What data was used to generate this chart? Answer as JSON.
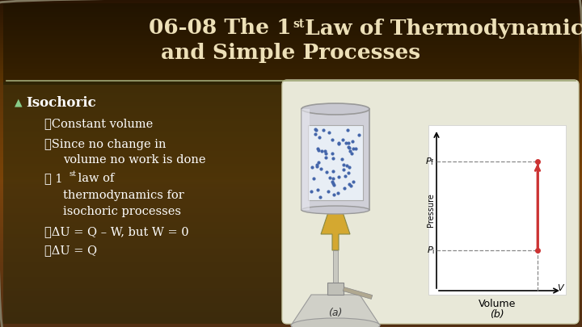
{
  "title_line1": "06-08 The 1",
  "title_sup": "st",
  "title_line1_rest": " Law of Thermodynamics",
  "title_line2": "and Simple Processes",
  "title_color": "#ede0b8",
  "title_fontsize": 19,
  "bg_gradient_colors": [
    "#2a1500",
    "#7a4a00",
    "#6a5020",
    "#3a3818"
  ],
  "separator_color": "#a0a878",
  "text_color": "#ffffff",
  "bullet_icon_color": "#aaccaa",
  "panel_bg": "#e8e8d8",
  "panel_edge": "#ccccaa",
  "pv_bg": "#f0f0f0",
  "pv_line_color": "#cc3333",
  "pv_dash_color": "#888888",
  "gas_color": "#c8d8e8",
  "gas_dot_color": "#4466aa",
  "cyl_color": "#d8d8e0",
  "cyl_edge": "#999999"
}
